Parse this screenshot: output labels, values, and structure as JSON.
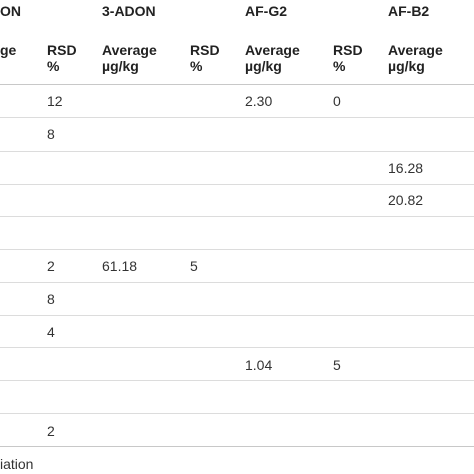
{
  "header_groups": [
    "ON",
    "3-ADON",
    "AF-G2",
    "AF-B2"
  ],
  "subheaders": [
    "ge",
    "RSD\n%",
    "Average\nµg/kg",
    "RSD\n%",
    "Average\nµg/kg",
    "RSD\n%",
    "Average\nµg/kg"
  ],
  "rows": [
    [
      "12",
      "",
      "",
      "2.30",
      "0",
      ""
    ],
    [
      "8",
      "",
      "",
      "",
      "",
      ""
    ],
    [
      "",
      "",
      "",
      "",
      "",
      "16.28"
    ],
    [
      "",
      "",
      "",
      "",
      "",
      "20.82"
    ],
    [
      "",
      "",
      "",
      "",
      "",
      ""
    ],
    [
      "2",
      "61.18",
      "5",
      "",
      "",
      ""
    ],
    [
      "8",
      "",
      "",
      "",
      "",
      ""
    ],
    [
      "4",
      "",
      "",
      "",
      "",
      ""
    ],
    [
      "",
      "",
      "",
      "1.04",
      "5",
      ""
    ],
    [
      "",
      "",
      "",
      "",
      "",
      ""
    ],
    [
      "2",
      "",
      "",
      "",
      "",
      ""
    ]
  ],
  "footnote": "iation"
}
